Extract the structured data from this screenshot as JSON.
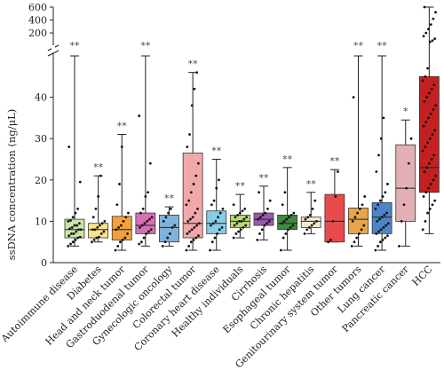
{
  "chart_data": {
    "type": "box",
    "ylabel": "ssDNA concentration (ng/μL)",
    "y_axis_lower": {
      "range": [
        0,
        50
      ],
      "ticks": [
        "0",
        "10",
        "20",
        "30",
        "40"
      ]
    },
    "y_axis_upper": {
      "range": [
        50,
        600
      ],
      "ticks": [
        "200",
        "400",
        "600"
      ]
    },
    "axis_break": true,
    "categories": [
      "Autoimmune disease",
      "Diabetes",
      "Head and neck tumor",
      "Gastroduodenal tumor",
      "Gynecologic oncology",
      "Colorectal tumor",
      "Coronary heart disease",
      "Healthy individuals",
      "Cirrhosis",
      "Esophageal tumor",
      "Chronic hepatitis",
      "Genitourinary system tumor",
      "Other tumors",
      "Lung cancer",
      "Pancreatic cancer",
      "HCC"
    ],
    "colors": [
      "#c8e6a8",
      "#fbe28a",
      "#f4a03c",
      "#d96fb6",
      "#7fb2dc",
      "#f2a8a8",
      "#86cde6",
      "#b7dc6a",
      "#9a58b0",
      "#3f8a3c",
      "#f6e9c8",
      "#e84b4b",
      "#e8a44b",
      "#4d86c8",
      "#e2b0b4",
      "#c42020"
    ],
    "significance": [
      "**",
      "**",
      "**",
      "**",
      "**",
      "**",
      "**",
      "**",
      "**",
      "**",
      "**",
      "**",
      "**",
      "**",
      "*",
      ""
    ],
    "series": [
      {
        "name": "Autoimmune disease",
        "min": 4,
        "q1": 6,
        "median": 8,
        "q3": 10.5,
        "max": 50,
        "points": [
          4,
          4.5,
          5,
          5.5,
          6,
          6.2,
          6.5,
          7,
          7,
          7.5,
          8,
          8,
          8.2,
          8.5,
          9,
          9,
          9.5,
          10,
          10.2,
          11,
          12,
          13,
          19.5,
          28
        ]
      },
      {
        "name": "Diabetes",
        "min": 5,
        "q1": 6,
        "median": 8,
        "q3": 9.5,
        "max": 21,
        "points": [
          5,
          5.5,
          6,
          6.2,
          7,
          7.5,
          8,
          8,
          8.5,
          9,
          9.5,
          10,
          11,
          13,
          16,
          21
        ]
      },
      {
        "name": "Head and neck tumor",
        "min": 3,
        "q1": 5.5,
        "median": 8,
        "q3": 11.2,
        "max": 31,
        "points": [
          3,
          4,
          5,
          5.5,
          6,
          7,
          8,
          8.5,
          9,
          10,
          11,
          12,
          14,
          19,
          28
        ]
      },
      {
        "name": "Gastroduodenal tumor",
        "min": 4,
        "q1": 7,
        "median": 9,
        "q3": 12,
        "max": 50,
        "points": [
          4.5,
          5,
          6,
          7,
          7.5,
          8,
          8.5,
          9,
          9.5,
          10,
          10.5,
          11,
          12,
          13,
          16,
          17,
          24,
          35.5
        ]
      },
      {
        "name": "Gynecologic oncology",
        "min": 4,
        "q1": 5,
        "median": 8.5,
        "q3": 11.5,
        "max": 13.5,
        "points": [
          4,
          5,
          6,
          7,
          8.5,
          9,
          10,
          11,
          12,
          13
        ]
      },
      {
        "name": "Colorectal tumor",
        "min": 3,
        "q1": 6,
        "median": 9.5,
        "q3": 26.5,
        "max": 46,
        "points": [
          3,
          4,
          5,
          5.5,
          6,
          6.5,
          7,
          7.5,
          8,
          8.5,
          9,
          9.5,
          10,
          10.5,
          11,
          12,
          13,
          14,
          15,
          17,
          19,
          21,
          24,
          28,
          31,
          38,
          42,
          46
        ]
      },
      {
        "name": "Coronary heart disease",
        "min": 3,
        "q1": 7,
        "median": 9.5,
        "q3": 12.5,
        "max": 25,
        "points": [
          3,
          5,
          6,
          7,
          8,
          8.5,
          9,
          9.5,
          10,
          11,
          12,
          13,
          14,
          15,
          18,
          20
        ]
      },
      {
        "name": "Healthy individuals",
        "min": 6,
        "q1": 8.5,
        "median": 10,
        "q3": 11.5,
        "max": 16.5,
        "points": [
          6,
          7,
          7.5,
          8,
          8.5,
          9,
          9,
          9.5,
          10,
          10,
          10.5,
          11,
          11,
          11.5,
          12,
          12.5,
          13,
          14
        ]
      },
      {
        "name": "Cirrhosis",
        "min": 5.5,
        "q1": 9,
        "median": 10.5,
        "q3": 12,
        "max": 18.5,
        "points": [
          5.5,
          7,
          8,
          9,
          9.5,
          10,
          10.5,
          11,
          11.5,
          12,
          13,
          15,
          17
        ]
      },
      {
        "name": "Esophageal tumor",
        "min": 3,
        "q1": 8,
        "median": 9.5,
        "q3": 11.5,
        "max": 23,
        "points": [
          3,
          6,
          7,
          8,
          8.5,
          9,
          9.5,
          10,
          10.5,
          11,
          11.5,
          12,
          14,
          17
        ]
      },
      {
        "name": "Chronic hepatitis",
        "min": 7,
        "q1": 8.5,
        "median": 10,
        "q3": 11,
        "max": 17,
        "points": [
          7,
          8,
          8.5,
          9,
          9.5,
          10,
          10.5,
          11,
          11.5,
          13,
          15
        ]
      },
      {
        "name": "Genitourinary system tumor",
        "min": 5,
        "q1": 5,
        "median": 10,
        "q3": 16.5,
        "max": 22.5,
        "points": [
          5,
          5.5,
          10,
          16,
          22
        ]
      },
      {
        "name": "Other tumors",
        "min": 4,
        "q1": 7,
        "median": 10.5,
        "q3": 13.2,
        "max": 50,
        "points": [
          4,
          5,
          6,
          7,
          8,
          9,
          10,
          11,
          12,
          13,
          14,
          16,
          40
        ]
      },
      {
        "name": "Lung cancer",
        "min": 3,
        "q1": 7,
        "median": 11,
        "q3": 14.5,
        "max": 50,
        "points": [
          3,
          4,
          5,
          5.5,
          6,
          6.5,
          7,
          7.5,
          8,
          8.5,
          9,
          9.5,
          10,
          10.5,
          11,
          11.5,
          12,
          13,
          14,
          15,
          16,
          17,
          19,
          22,
          26,
          30,
          35
        ]
      },
      {
        "name": "Pancreatic cancer",
        "min": 4,
        "q1": 10,
        "median": 18,
        "q3": 28.5,
        "max": 34.5,
        "points": [
          4,
          10,
          14,
          18,
          24,
          30
        ]
      },
      {
        "name": "HCC",
        "min": 7,
        "q1": 17,
        "median": 23,
        "q3": 45,
        "max": 600,
        "points": [
          8,
          10,
          12,
          13,
          14,
          15,
          16,
          17,
          18,
          19,
          20,
          21,
          22,
          23,
          24,
          25,
          26,
          27,
          28,
          29,
          30,
          31,
          32,
          33,
          34,
          35,
          36,
          37,
          38,
          39,
          40,
          41,
          42,
          43,
          44,
          45,
          47,
          60,
          80,
          110,
          150,
          200,
          260,
          330,
          420,
          520,
          600
        ]
      }
    ]
  }
}
